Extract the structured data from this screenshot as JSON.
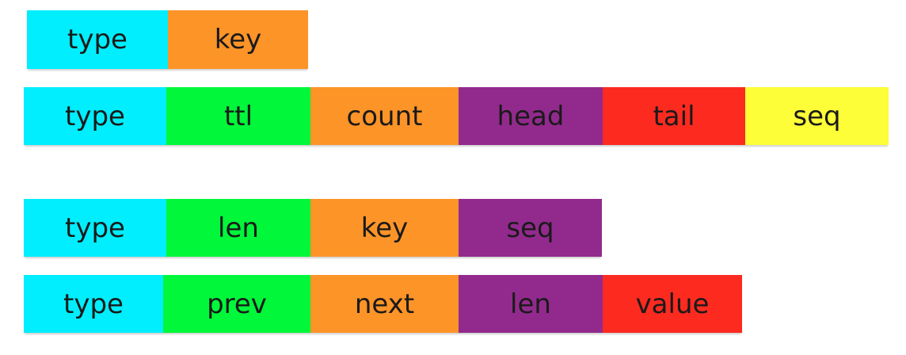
{
  "colors": {
    "cyan": "#00eefd",
    "green": "#00f73a",
    "orange": "#fd9428",
    "purple": "#922a8d",
    "red": "#fd2a20",
    "yellow": "#fdfd38"
  },
  "rows": [
    {
      "cells": [
        {
          "label": "type",
          "color": "cyan"
        },
        {
          "label": "key",
          "color": "orange"
        }
      ]
    },
    {
      "cells": [
        {
          "label": "type",
          "color": "cyan"
        },
        {
          "label": "ttl",
          "color": "green"
        },
        {
          "label": "count",
          "color": "orange"
        },
        {
          "label": "head",
          "color": "purple"
        },
        {
          "label": "tail",
          "color": "red"
        },
        {
          "label": "seq",
          "color": "yellow"
        }
      ]
    },
    {
      "cells": [
        {
          "label": "type",
          "color": "cyan"
        },
        {
          "label": "len",
          "color": "green"
        },
        {
          "label": "key",
          "color": "orange"
        },
        {
          "label": "seq",
          "color": "purple"
        }
      ]
    },
    {
      "cells": [
        {
          "label": "type",
          "color": "cyan"
        },
        {
          "label": "prev",
          "color": "green"
        },
        {
          "label": "next",
          "color": "orange"
        },
        {
          "label": "len",
          "color": "purple"
        },
        {
          "label": "value",
          "color": "red"
        }
      ]
    }
  ]
}
